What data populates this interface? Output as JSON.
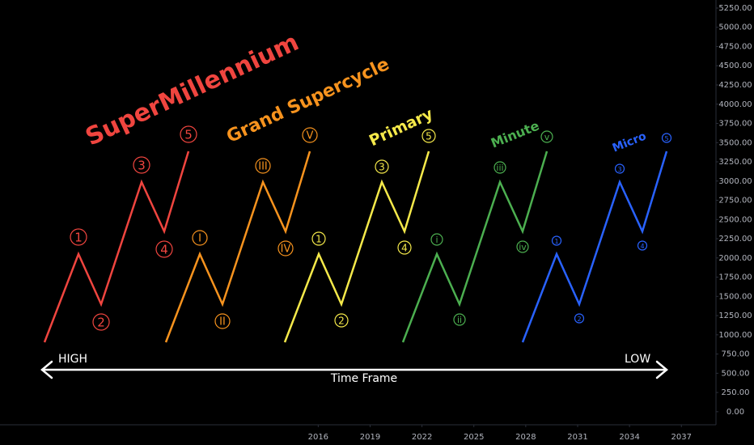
{
  "chart_data": {
    "type": "wave-diagram",
    "ylim": [
      -170,
      5355
    ],
    "yticks": [
      {
        "value": 0,
        "label": "0.00"
      },
      {
        "value": 250,
        "label": "250.00"
      },
      {
        "value": 500,
        "label": "500.00"
      },
      {
        "value": 750,
        "label": "750.00"
      },
      {
        "value": 1000,
        "label": "1000.00"
      },
      {
        "value": 1250,
        "label": "1250.00"
      },
      {
        "value": 1500,
        "label": "1500.00"
      },
      {
        "value": 1750,
        "label": "1750.00"
      },
      {
        "value": 2000,
        "label": "2000.00"
      },
      {
        "value": 2250,
        "label": "2250.00"
      },
      {
        "value": 2500,
        "label": "2500.00"
      },
      {
        "value": 2750,
        "label": "2750.00"
      },
      {
        "value": 3000,
        "label": "3000.00"
      },
      {
        "value": 3250,
        "label": "3250.00"
      },
      {
        "value": 3500,
        "label": "3500.00"
      },
      {
        "value": 3750,
        "label": "3750.00"
      },
      {
        "value": 4000,
        "label": "4000.00"
      },
      {
        "value": 4250,
        "label": "4250.00"
      },
      {
        "value": 4500,
        "label": "4500.00"
      },
      {
        "value": 4750,
        "label": "4750.00"
      },
      {
        "value": 5000,
        "label": "5000.00"
      },
      {
        "value": 5250,
        "label": "5250.00"
      }
    ],
    "xlim": [
      1997.6,
      2039.0
    ],
    "xticks": [
      2016,
      2019,
      2022,
      2025,
      2028,
      2031,
      2034,
      2037
    ],
    "waves": [
      {
        "name": "SuperMillennium",
        "color": "#f0453f",
        "labels": [
          "1",
          "2",
          "3",
          "4",
          "5"
        ]
      },
      {
        "name": "Grand Supercycle",
        "color": "#f7931e",
        "labels": [
          "I",
          "II",
          "III",
          "IV",
          "V"
        ]
      },
      {
        "name": "Primary",
        "color": "#f5e94a",
        "labels": [
          "1",
          "2",
          "3",
          "4",
          "5"
        ]
      },
      {
        "name": "Minute",
        "color": "#4caf50",
        "labels": [
          "i",
          "ii",
          "iii",
          "iv",
          "v"
        ]
      },
      {
        "name": "Micro",
        "color": "#2962ff",
        "labels": [
          "1",
          "2",
          "3",
          "4",
          "5"
        ]
      }
    ],
    "annotations": {
      "left": "HIGH",
      "right": "LOW",
      "axis": "Time Frame"
    }
  }
}
